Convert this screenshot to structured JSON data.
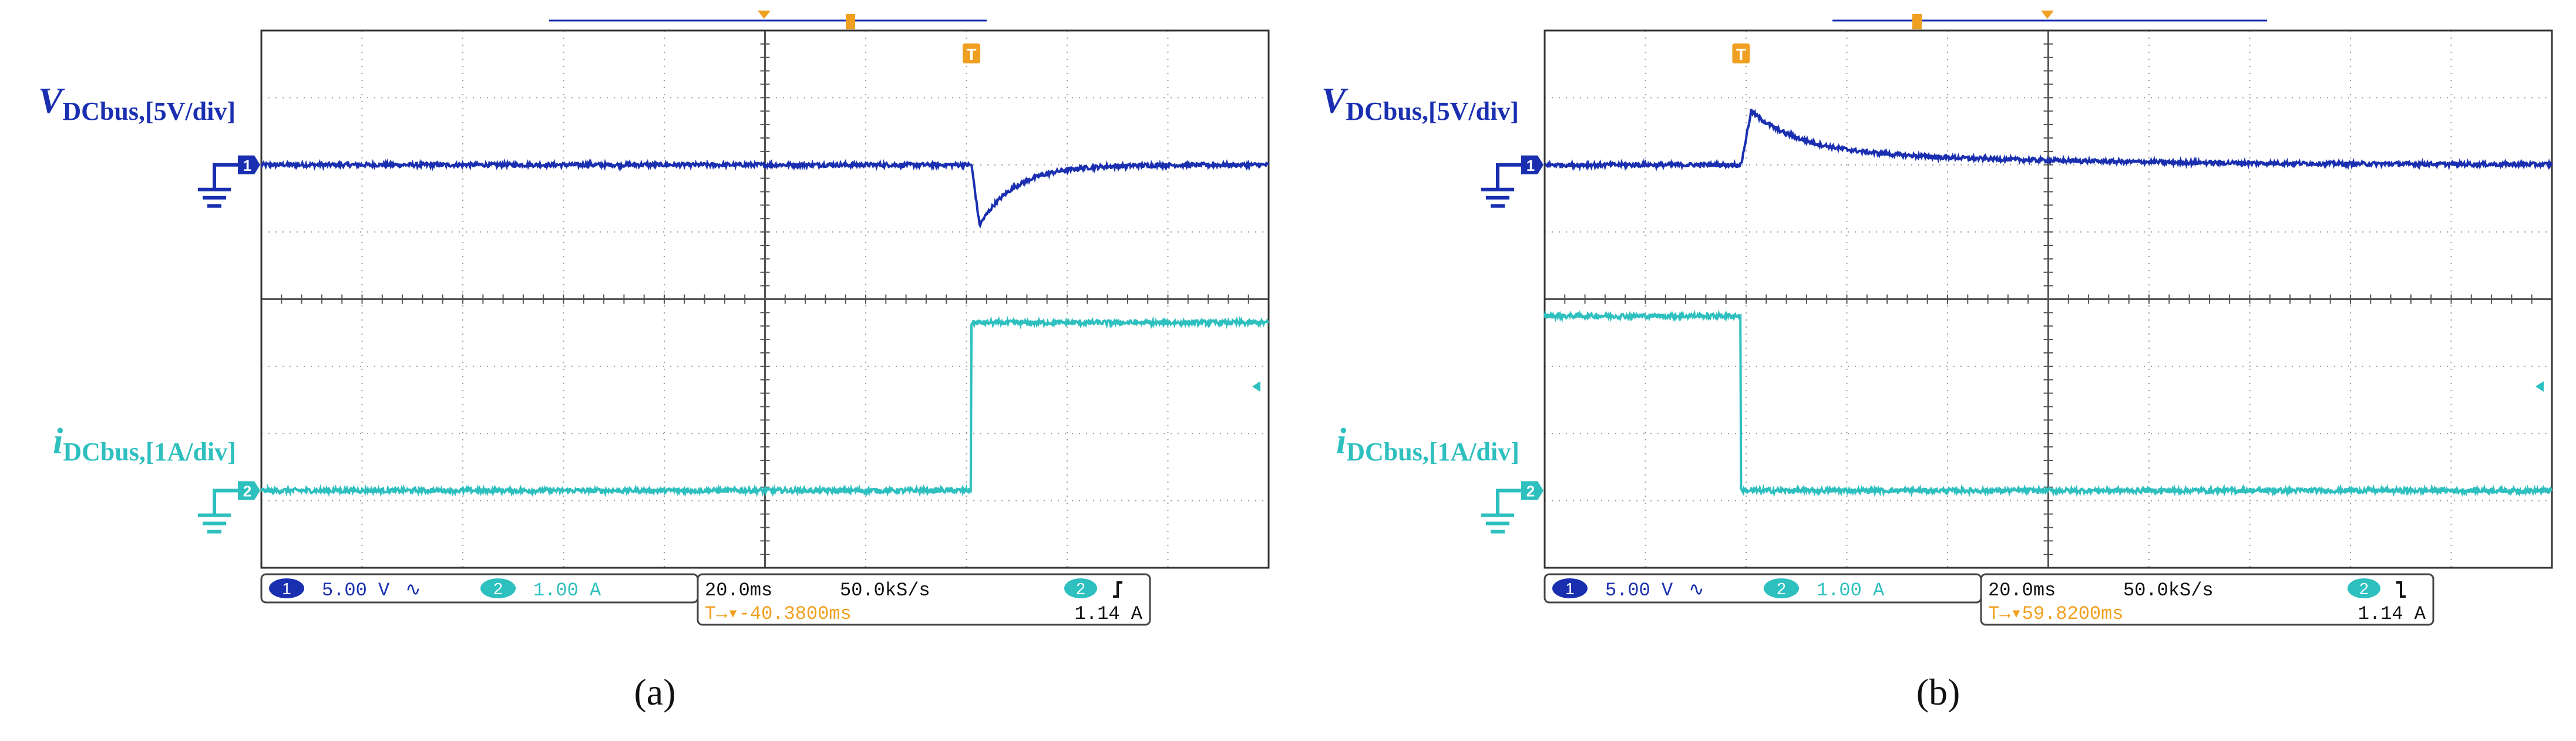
{
  "colors": {
    "ch1": "#1a2fb0",
    "ch2": "#2ebfbf",
    "trigger": "#f0a020",
    "grid": "#9a9a9a",
    "frame": "#333333",
    "ch2_trace_dark": "#1d7d80"
  },
  "icons": {
    "ground": "ground-icon",
    "ch_marker": "channel-marker-icon",
    "trigger": "trigger-marker-icon",
    "rising_edge": "rising-edge-icon",
    "falling_edge": "falling-edge-icon"
  },
  "chart_data": [
    {
      "type": "line",
      "caption": "(a)",
      "label_v": {
        "main": "V",
        "sub": "DCbus,[5V/div]"
      },
      "label_i": {
        "main": "i",
        "sub": "DCbus,[1A/div]"
      },
      "x_divisions": 10,
      "y_divisions": 8,
      "ch1_marker": "1",
      "ch2_marker": "2",
      "trigger_marker": "T",
      "series": [
        {
          "channel": 1,
          "baseline_div": 6.0,
          "transient": {
            "at_div": 7.05,
            "peak_div": 5.1,
            "tau_div": 0.35,
            "type": "dip"
          }
        },
        {
          "channel": 2,
          "low_div": 1.15,
          "high_div": 3.65,
          "step_at_div": 7.05,
          "direction": "up"
        }
      ],
      "info": {
        "ch1_num": "1",
        "ch1_scale": "5.00 V",
        "ch1_bw": "∿",
        "ch2_num": "2",
        "ch2_scale": "1.00 A",
        "ch2_bw": "",
        "timebase": "20.0ms",
        "sample_rate": "50.0kS/s",
        "trig_ch": "2",
        "trig_level": "1.14 A",
        "trig_edge": "rising",
        "trig_pos_prefix": "T→▾",
        "trig_pos": "-40.3800ms"
      }
    },
    {
      "type": "line",
      "caption": "(b)",
      "label_v": {
        "main": "V",
        "sub": "DCbus,[5V/div]"
      },
      "label_i": {
        "main": "i",
        "sub": "DCbus,[1A/div]"
      },
      "x_divisions": 10,
      "y_divisions": 8,
      "ch1_marker": "1",
      "ch2_marker": "2",
      "trigger_marker": "T",
      "series": [
        {
          "channel": 1,
          "baseline_div": 6.0,
          "transient": {
            "at_div": 1.95,
            "peak_div": 6.8,
            "tau_div": 0.45,
            "type": "overshoot",
            "settle_div": 6.25,
            "settle_tau_div": 2.2
          }
        },
        {
          "channel": 2,
          "low_div": 1.15,
          "high_div": 3.75,
          "step_at_div": 1.95,
          "direction": "down"
        }
      ],
      "info": {
        "ch1_num": "1",
        "ch1_scale": "5.00 V",
        "ch1_bw": "∿",
        "ch2_num": "2",
        "ch2_scale": "1.00 A",
        "ch2_bw": "",
        "timebase": "20.0ms",
        "sample_rate": "50.0kS/s",
        "trig_ch": "2",
        "trig_level": "1.14 A",
        "trig_edge": "falling",
        "trig_pos_prefix": "T→▾",
        "trig_pos": "59.8200ms"
      }
    }
  ]
}
